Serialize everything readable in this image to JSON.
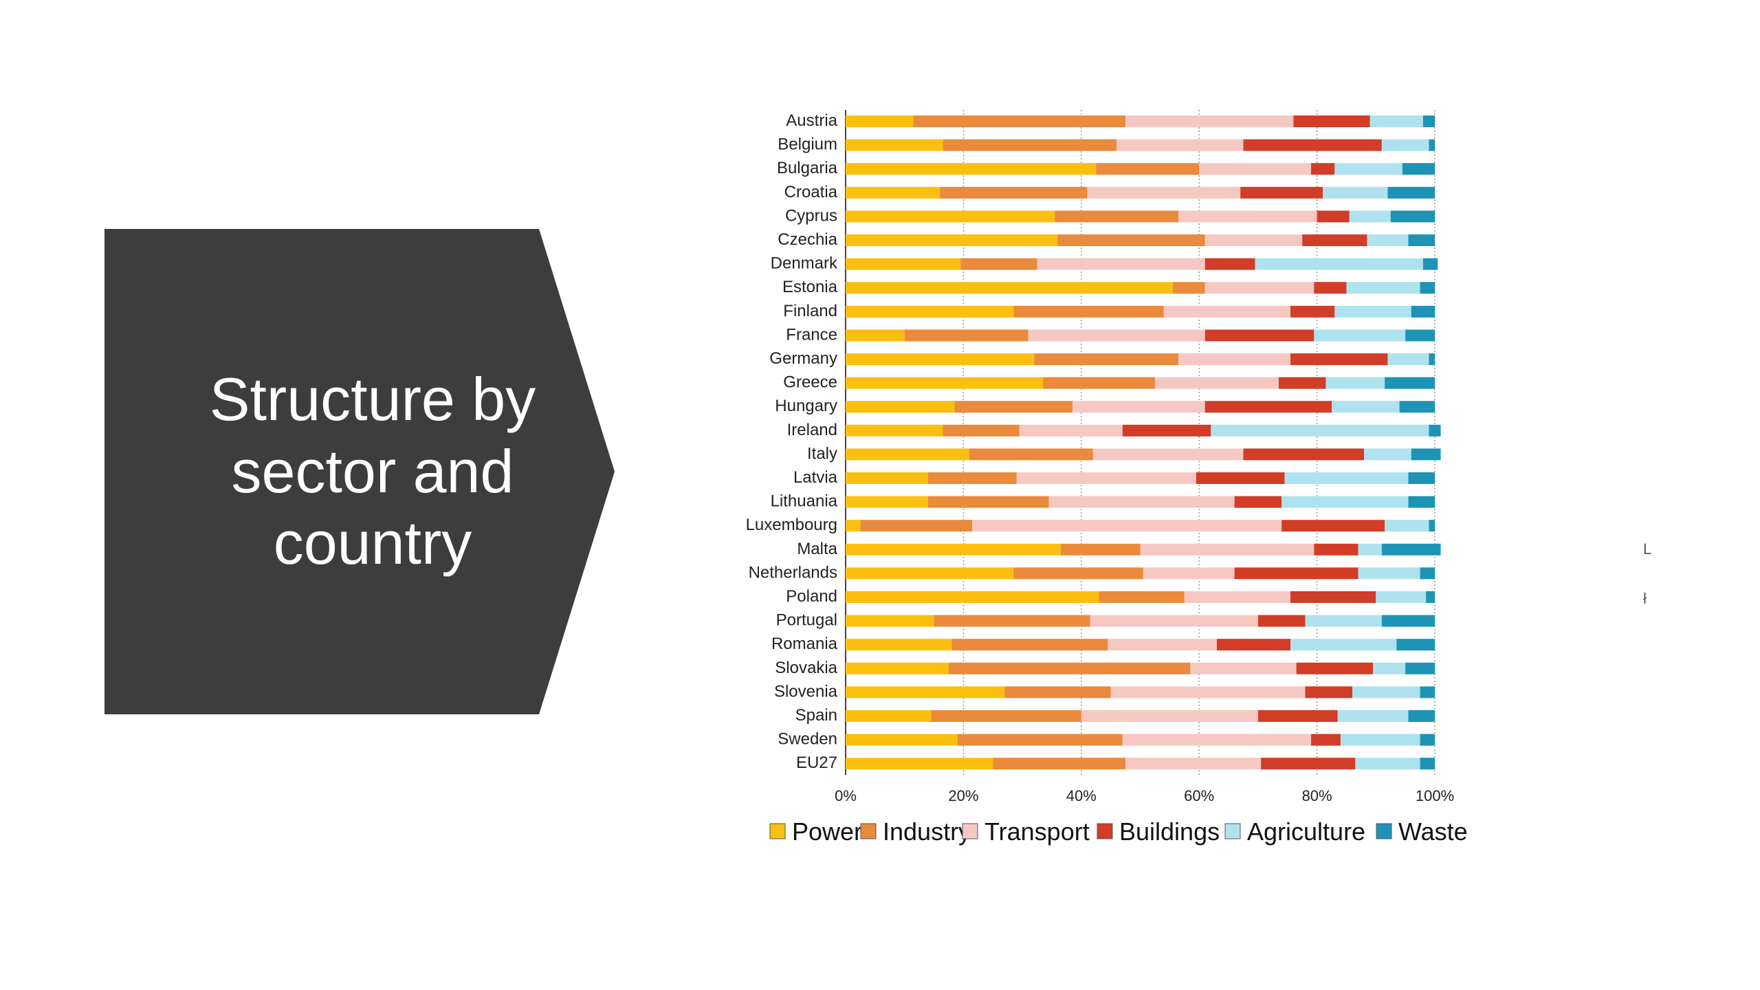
{
  "slide": {
    "title_lines": [
      "Structure by",
      "sector and",
      "country"
    ],
    "chevron_color": "#3d3d3e",
    "edge_glyphs": [
      "L",
      "ł"
    ]
  },
  "chart_data": {
    "type": "bar",
    "orientation": "horizontal",
    "stacked": true,
    "normalized": true,
    "title": "",
    "xlabel": "",
    "ylabel": "",
    "xlim": [
      0,
      100
    ],
    "x_ticks": [
      "0%",
      "20%",
      "40%",
      "60%",
      "80%",
      "100%"
    ],
    "grid": "vertical dotted",
    "legend_position": "bottom",
    "categories": [
      "Austria",
      "Belgium",
      "Bulgaria",
      "Croatia",
      "Cyprus",
      "Czechia",
      "Denmark",
      "Estonia",
      "Finland",
      "France",
      "Germany",
      "Greece",
      "Hungary",
      "Ireland",
      "Italy",
      "Latvia",
      "Lithuania",
      "Luxembourg",
      "Malta",
      "Netherlands",
      "Poland",
      "Portugal",
      "Romania",
      "Slovakia",
      "Slovenia",
      "Spain",
      "Sweden",
      "EU27"
    ],
    "series": [
      {
        "name": "Power",
        "color": "#fbbf0f",
        "values": [
          11.5,
          16.5,
          42.5,
          16,
          35.5,
          36,
          19.5,
          55.5,
          28.5,
          10,
          32,
          33.5,
          18.5,
          16.5,
          21,
          14,
          14,
          2.5,
          36.5,
          28.5,
          43,
          15,
          18,
          17.5,
          27,
          14.5,
          19,
          25
        ]
      },
      {
        "name": "Industry",
        "color": "#ea8a3c",
        "values": [
          36,
          29.5,
          17.5,
          25,
          21,
          25,
          13,
          5.5,
          25.5,
          21,
          24.5,
          19,
          20,
          13,
          21,
          15,
          20.5,
          19,
          13.5,
          22,
          14.5,
          26.5,
          26.5,
          41,
          18,
          25.5,
          28,
          22.5
        ]
      },
      {
        "name": "Transport",
        "color": "#f6c8c2",
        "values": [
          28.5,
          21.5,
          19,
          26,
          23.5,
          16.5,
          28.5,
          18.5,
          21.5,
          30,
          19,
          21,
          22.5,
          17.5,
          25.5,
          30.5,
          31.5,
          52.5,
          29.5,
          15.5,
          18,
          28.5,
          18.5,
          18,
          33,
          30,
          32,
          23
        ]
      },
      {
        "name": "Buildings",
        "color": "#d13d27",
        "values": [
          13,
          23.5,
          4,
          14,
          5.5,
          11,
          8.5,
          5.5,
          7.5,
          18.5,
          16.5,
          8,
          21.5,
          15,
          20.5,
          15,
          8,
          17.5,
          7.5,
          21,
          14.5,
          8,
          12.5,
          13,
          8,
          13.5,
          5,
          16
        ]
      },
      {
        "name": "Agriculture",
        "color": "#aee2ee",
        "values": [
          9,
          8,
          11.5,
          11,
          7,
          7,
          28.5,
          12.5,
          13,
          15.5,
          7,
          10,
          11.5,
          37,
          8,
          21,
          21.5,
          7.5,
          4,
          10.5,
          8.5,
          13,
          18,
          5.5,
          11.5,
          12,
          13.5,
          11
        ]
      },
      {
        "name": "Waste",
        "color": "#1d94b5",
        "values": [
          2,
          1,
          5.5,
          8,
          7.5,
          4.5,
          2.5,
          2.5,
          4,
          5,
          1,
          8.5,
          6,
          2,
          5,
          4.5,
          4.5,
          1,
          10,
          2.5,
          1.5,
          9,
          6.5,
          5,
          2.5,
          4.5,
          2.5,
          2.5
        ]
      }
    ]
  }
}
